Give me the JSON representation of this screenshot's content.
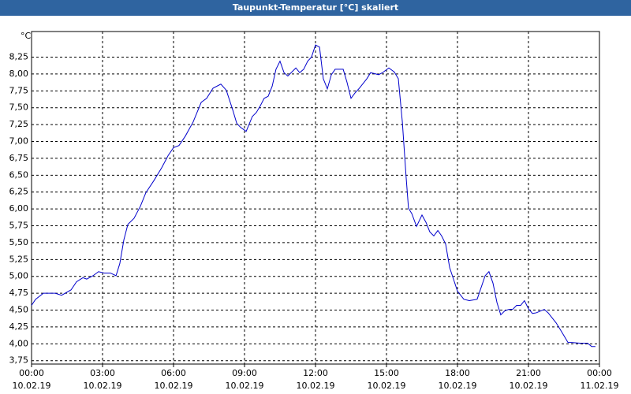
{
  "chart_data": {
    "type": "line",
    "title": "Taupunkt-Temperatur [°C] skaliert",
    "y_label": "°C",
    "x": [
      0,
      0.17,
      0.5,
      1,
      1.27,
      1.67,
      1.9,
      2.17,
      2.33,
      2.6,
      2.83,
      3.07,
      3.33,
      3.57,
      3.73,
      3.9,
      4.07,
      4.33,
      4.6,
      4.83,
      5.17,
      5.5,
      5.77,
      6,
      6.23,
      6.5,
      6.83,
      7.17,
      7.4,
      7.67,
      8,
      8.23,
      8.5,
      8.67,
      8.83,
      9.07,
      9.33,
      9.5,
      9.67,
      9.83,
      10,
      10.17,
      10.33,
      10.5,
      10.67,
      10.83,
      11.17,
      11.33,
      11.5,
      11.67,
      11.83,
      12,
      12.17,
      12.33,
      12.5,
      12.67,
      12.83,
      13.17,
      13.33,
      13.5,
      13.67,
      13.83,
      14.17,
      14.33,
      14.67,
      14.83,
      15.1,
      15.33,
      15.5,
      15.67,
      15.83,
      15.93,
      16.07,
      16.27,
      16.5,
      16.67,
      16.83,
      17,
      17.17,
      17.33,
      17.5,
      17.67,
      17.83,
      18,
      18.27,
      18.5,
      18.83,
      19.17,
      19.33,
      19.5,
      19.67,
      19.83,
      20,
      20.17,
      20.33,
      20.5,
      20.67,
      20.83,
      21,
      21.17,
      21.33,
      21.67,
      21.83,
      22.17,
      22.33,
      22.5,
      22.67,
      22.83,
      23.17,
      23.5,
      23.67,
      23.83
    ],
    "series": [
      {
        "color": "#0000cc",
        "values": [
          4.57,
          4.66,
          4.75,
          4.75,
          4.72,
          4.8,
          4.92,
          4.98,
          4.96,
          5.01,
          5.07,
          5.05,
          5.05,
          5.01,
          5.19,
          5.54,
          5.77,
          5.86,
          6.04,
          6.24,
          6.42,
          6.61,
          6.79,
          6.91,
          6.94,
          7.08,
          7.29,
          7.58,
          7.64,
          7.79,
          7.85,
          7.76,
          7.47,
          7.27,
          7.21,
          7.15,
          7.37,
          7.43,
          7.53,
          7.64,
          7.67,
          7.82,
          8.07,
          8.19,
          8.02,
          7.97,
          8.09,
          8.02,
          8.07,
          8.19,
          8.25,
          8.43,
          8.4,
          7.93,
          7.78,
          7.99,
          8.07,
          8.07,
          7.88,
          7.64,
          7.72,
          7.78,
          7.93,
          8.02,
          7.99,
          8.02,
          8.09,
          8.03,
          7.93,
          7.29,
          6.47,
          6.01,
          5.93,
          5.74,
          5.91,
          5.8,
          5.66,
          5.6,
          5.68,
          5.6,
          5.48,
          5.13,
          4.96,
          4.78,
          4.66,
          4.64,
          4.66,
          5.01,
          5.07,
          4.9,
          4.61,
          4.43,
          4.49,
          4.51,
          4.51,
          4.57,
          4.57,
          4.64,
          4.52,
          4.45,
          4.46,
          4.51,
          4.46,
          4.31,
          4.22,
          4.12,
          4.02,
          4.02,
          4.01,
          4.01,
          3.96,
          3.96
        ]
      }
    ],
    "xlim": [
      0,
      24
    ],
    "ylim": [
      3.7,
      8.63
    ],
    "xticks": [
      {
        "value": 0,
        "label": "00:00",
        "date": "10.02.19"
      },
      {
        "value": 3,
        "label": "03:00",
        "date": "10.02.19"
      },
      {
        "value": 6,
        "label": "06:00",
        "date": "10.02.19"
      },
      {
        "value": 9,
        "label": "09:00",
        "date": "10.02.19"
      },
      {
        "value": 12,
        "label": "12:00",
        "date": "10.02.19"
      },
      {
        "value": 15,
        "label": "15:00",
        "date": "10.02.19"
      },
      {
        "value": 18,
        "label": "18:00",
        "date": "10.02.19"
      },
      {
        "value": 21,
        "label": "21:00",
        "date": "10.02.19"
      },
      {
        "value": 24,
        "label": "00:00",
        "date": "11.02.19"
      }
    ],
    "yticks": [
      {
        "value": 3.75,
        "label": "3,75"
      },
      {
        "value": 4,
        "label": "4,00"
      },
      {
        "value": 4.25,
        "label": "4,25"
      },
      {
        "value": 4.5,
        "label": "4,50"
      },
      {
        "value": 4.75,
        "label": "4,75"
      },
      {
        "value": 5,
        "label": "5,00"
      },
      {
        "value": 5.25,
        "label": "5,25"
      },
      {
        "value": 5.5,
        "label": "5,50"
      },
      {
        "value": 5.75,
        "label": "5,75"
      },
      {
        "value": 6,
        "label": "6,00"
      },
      {
        "value": 6.25,
        "label": "6,25"
      },
      {
        "value": 6.5,
        "label": "6,50"
      },
      {
        "value": 6.75,
        "label": "6,75"
      },
      {
        "value": 7,
        "label": "7,00"
      },
      {
        "value": 7.25,
        "label": "7,25"
      },
      {
        "value": 7.5,
        "label": "7,50"
      },
      {
        "value": 7.75,
        "label": "7,75"
      },
      {
        "value": 8,
        "label": "8,00"
      },
      {
        "value": 8.25,
        "label": "8,25"
      }
    ],
    "grid": true
  }
}
